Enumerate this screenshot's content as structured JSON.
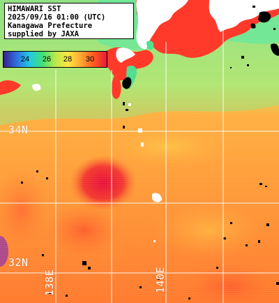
{
  "title": {
    "lines": [
      "HIMAWARI SST",
      "2025/09/16 01:00 (UTC)",
      "Kanagawa Prefecture",
      "supplied by JAXA"
    ]
  },
  "legend": {
    "ticks": [
      "24",
      "26",
      "28",
      "30"
    ],
    "colors": [
      "#3a1f8c",
      "#2f6fe0",
      "#22c8e6",
      "#3fe07a",
      "#b8e84a",
      "#ffe640",
      "#ffa733",
      "#ff5a20",
      "#e61a38"
    ]
  },
  "grid": {
    "lat_labels": [
      "34N",
      "32N"
    ],
    "lon_labels": [
      "138E",
      "140E"
    ]
  },
  "colors": {
    "land": "#ff3a2a",
    "cloud": "#ffffff",
    "no_data": "#000000",
    "warm_sea": "#ff8a3a",
    "hot_spot": "#e8243c",
    "cool_sea": "#bfe86a",
    "coast_water": "#5fe8a0"
  }
}
